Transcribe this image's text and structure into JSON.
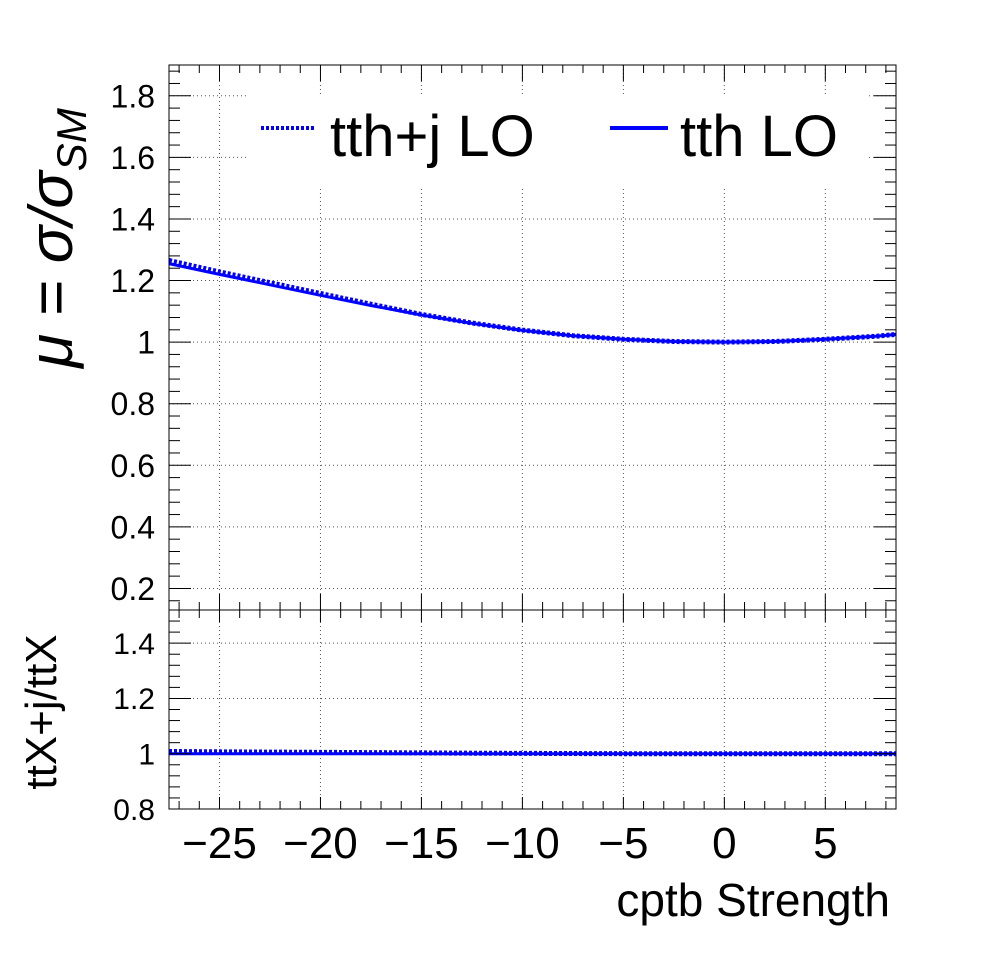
{
  "chart_data": {
    "type": "line",
    "xlabel": "cptb Strength",
    "xlim": [
      -27.5,
      8.5
    ],
    "x_ticks": [
      -25,
      -20,
      -15,
      -10,
      -5,
      0,
      5
    ],
    "x_tick_labels": [
      "−25",
      "−20",
      "−15",
      "−10",
      "−5",
      "0",
      "5"
    ],
    "grid": true,
    "colors": {
      "series": "#0000ff",
      "frame": "#000000",
      "grid": "#555555"
    },
    "top_panel": {
      "ylabel_main": "μ = σ/σ",
      "ylabel_sub": "SM",
      "ylim": [
        0.13,
        1.9
      ],
      "y_ticks": [
        0.2,
        0.4,
        0.6,
        0.8,
        1.0,
        1.2,
        1.4,
        1.6,
        1.8
      ],
      "y_tick_labels": [
        "0.2",
        "0.4",
        "0.6",
        "0.8",
        "1",
        "1.2",
        "1.4",
        "1.6",
        "1.8"
      ],
      "legend": {
        "position": "top",
        "entries": [
          "tth+j LO",
          "tth LO"
        ]
      },
      "x": [
        -27.5,
        -25,
        -22.5,
        -20,
        -17.5,
        -15,
        -12.5,
        -10,
        -7.5,
        -5,
        -2.5,
        0,
        2.5,
        5,
        7.5,
        8.5
      ],
      "series": [
        {
          "name": "tth+j LO",
          "style": "dotted",
          "values": [
            1.265,
            1.228,
            1.193,
            1.158,
            1.123,
            1.09,
            1.062,
            1.039,
            1.021,
            1.009,
            1.002,
            1.0,
            1.002,
            1.009,
            1.019,
            1.025
          ]
        },
        {
          "name": "tth LO",
          "style": "solid",
          "values": [
            1.255,
            1.22,
            1.186,
            1.152,
            1.119,
            1.088,
            1.061,
            1.038,
            1.021,
            1.009,
            1.002,
            1.0,
            1.002,
            1.009,
            1.019,
            1.025
          ]
        }
      ]
    },
    "bottom_panel": {
      "ylabel": "ttX+j/ttX",
      "ylim": [
        0.8,
        1.52
      ],
      "y_ticks": [
        0.8,
        1.0,
        1.2,
        1.4
      ],
      "y_tick_labels": [
        "0.8",
        "1",
        "1.2",
        "1.4"
      ],
      "x": [
        -27.5,
        -22.5,
        -17.5,
        -12.5,
        -9.5,
        -5,
        0,
        5,
        8.5
      ],
      "series": [
        {
          "name": "tth+j LO",
          "style": "dotted",
          "values": [
            1.008,
            1.006,
            1.004,
            1.002,
            1.001,
            1.0,
            1.0,
            1.0,
            1.0
          ]
        },
        {
          "name": "tth LO",
          "style": "solid",
          "values": [
            1.0,
            1.0,
            1.0,
            1.0,
            1.0,
            1.0,
            1.0,
            1.0,
            1.0
          ]
        }
      ]
    }
  }
}
